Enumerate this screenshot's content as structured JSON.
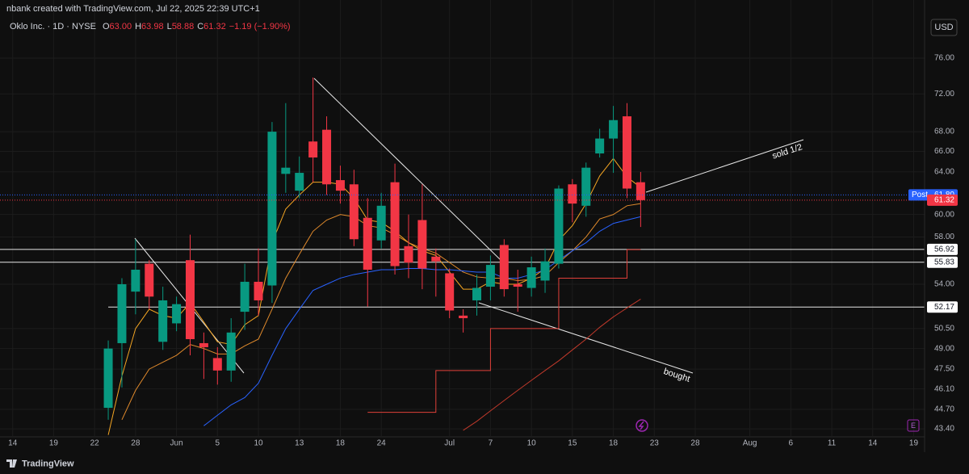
{
  "header": {
    "credit": "nbank created with TradingView.com, Jul 22, 2025 22:39 UTC+1",
    "symbol": "Oklo Inc. · 1D · NYSE",
    "ohlc": [
      {
        "key": "O",
        "value": "63.00"
      },
      {
        "key": "H",
        "value": "63.98"
      },
      {
        "key": "L",
        "value": "58.88"
      },
      {
        "key": "C",
        "value": "61.32"
      }
    ],
    "change": "−1.19 (−1.90%)",
    "currency": "USD"
  },
  "footer": {
    "brand": "TradingView"
  },
  "chart_data": {
    "type": "candlestick",
    "log_scale": true,
    "up_color": "#089981",
    "down_color": "#f23645",
    "candles": {
      "open": [
        44.8,
        49.4,
        53.4,
        55.7,
        49.5,
        50.9,
        56.0,
        49.4,
        48.3,
        47.4,
        51.8,
        54.2,
        53.9,
        63.8,
        62.2,
        67.0,
        68.2,
        63.2,
        62.8,
        59.7,
        57.7,
        63.0,
        57.2,
        59.5,
        56.3,
        54.9,
        51.5,
        52.7,
        53.8,
        57.3,
        54.0,
        53.7,
        54.3,
        55.7,
        62.8,
        60.8,
        65.8,
        67.3,
        69.6,
        63.0
      ],
      "high": [
        49.6,
        54.5,
        57.8,
        56.0,
        53.8,
        53.0,
        58.2,
        50.2,
        49.1,
        51.3,
        55.7,
        57.0,
        69.0,
        71.0,
        65.5,
        73.8,
        69.6,
        64.6,
        64.2,
        61.5,
        62.0,
        64.8,
        60.0,
        62.8,
        57.0,
        55.3,
        52.0,
        54.8,
        56.4,
        57.8,
        55.2,
        56.3,
        57.0,
        62.7,
        63.3,
        64.9,
        68.3,
        70.7,
        71.0,
        63.98
      ],
      "low": [
        44.0,
        46.2,
        51.6,
        52.0,
        48.9,
        50.3,
        48.5,
        46.8,
        46.4,
        46.6,
        50.4,
        51.5,
        52.5,
        62.0,
        61.5,
        63.0,
        61.8,
        61.0,
        57.2,
        52.2,
        57.0,
        54.8,
        54.5,
        53.6,
        53.0,
        51.3,
        50.2,
        51.5,
        52.7,
        53.0,
        51.8,
        53.0,
        53.3,
        55.3,
        59.3,
        59.8,
        65.4,
        63.9,
        61.5,
        58.88
      ],
      "close": [
        49.0,
        54.0,
        55.2,
        53.0,
        52.7,
        52.4,
        49.7,
        49.1,
        47.4,
        50.2,
        54.2,
        52.7,
        68.0,
        64.4,
        63.9,
        65.4,
        62.8,
        62.2,
        57.8,
        55.2,
        60.8,
        55.5,
        55.8,
        55.3,
        55.9,
        51.9,
        51.3,
        53.7,
        55.6,
        53.6,
        53.8,
        55.4,
        55.9,
        62.4,
        61.0,
        64.4,
        67.3,
        69.2,
        62.4,
        61.32
      ]
    },
    "series": [
      {
        "color": "#f5a623",
        "values": [
          43.0,
          47.0,
          50.5,
          52.0,
          51.5,
          51.3,
          52.5,
          51.0,
          49.5,
          49.3,
          50.8,
          51.5,
          57.5,
          60.5,
          61.8,
          63.0,
          63.0,
          62.8,
          61.5,
          59.5,
          59.3,
          58.5,
          57.5,
          56.8,
          56.4,
          55.0,
          53.6,
          53.6,
          54.2,
          54.0,
          54.0,
          54.5,
          55.3,
          57.7,
          59.0,
          61.0,
          63.6,
          65.3,
          63.5,
          62.5
        ]
      },
      {
        "color": "#e08a2c",
        "values": [
          null,
          44.0,
          46.0,
          47.5,
          48.0,
          48.5,
          49.3,
          49.0,
          48.6,
          48.6,
          49.2,
          49.7,
          52.0,
          54.5,
          56.5,
          58.5,
          59.5,
          60.0,
          59.8,
          59.0,
          58.8,
          58.2,
          57.5,
          57.0,
          56.6,
          55.8,
          55.0,
          54.6,
          54.5,
          54.5,
          54.3,
          54.4,
          54.7,
          55.8,
          56.8,
          58.0,
          59.6,
          60.0,
          60.8,
          61.0
        ]
      },
      {
        "color": "#2962ff",
        "values": [
          null,
          null,
          null,
          null,
          null,
          null,
          null,
          43.6,
          44.3,
          45.0,
          45.5,
          46.5,
          48.5,
          50.5,
          52.0,
          53.5,
          54.0,
          54.5,
          54.8,
          55.0,
          55.2,
          55.2,
          55.3,
          55.3,
          55.2,
          55.2,
          55.1,
          55.0,
          55.0,
          54.5,
          54.5,
          54.8,
          55.2,
          56.0,
          56.8,
          57.5,
          58.5,
          59.2,
          59.5,
          59.8
        ]
      },
      {
        "color": "#e0403a",
        "step": true,
        "values": [
          null,
          null,
          null,
          null,
          null,
          null,
          null,
          null,
          null,
          null,
          null,
          null,
          null,
          null,
          null,
          null,
          null,
          null,
          null,
          44.5,
          44.5,
          44.5,
          44.5,
          44.5,
          47.4,
          47.4,
          47.4,
          47.4,
          50.5,
          50.5,
          50.5,
          50.5,
          50.5,
          54.5,
          54.5,
          54.5,
          54.5,
          54.5,
          56.9,
          56.9
        ]
      },
      {
        "color": "#c0392b",
        "values": [
          null,
          null,
          null,
          null,
          null,
          null,
          null,
          null,
          null,
          null,
          null,
          null,
          null,
          null,
          null,
          null,
          null,
          null,
          null,
          null,
          null,
          null,
          null,
          null,
          null,
          null,
          43.3,
          43.9,
          44.6,
          45.3,
          46.0,
          46.7,
          47.4,
          48.1,
          48.9,
          49.7,
          50.6,
          51.4,
          52.1,
          52.8
        ]
      }
    ],
    "levels": [
      {
        "value": 56.92,
        "label": "56.92"
      },
      {
        "value": 55.83,
        "label": "55.83"
      },
      {
        "value": 52.17,
        "label": "52.17"
      }
    ],
    "post": {
      "label": "Post",
      "value": 61.8,
      "value_label": "61.80"
    },
    "last": {
      "value": 61.32,
      "label": "61.32"
    },
    "annotations": [
      "sold 1/2",
      "bought"
    ],
    "earnings_marker": "E",
    "ylim": [
      42.93,
      78.54
    ],
    "yticks": [
      {
        "value": 76,
        "label": "76.00"
      },
      {
        "value": 72,
        "label": "72.00"
      },
      {
        "value": 68,
        "label": "68.00"
      },
      {
        "value": 66,
        "label": "66.00"
      },
      {
        "value": 64,
        "label": "64.00"
      },
      {
        "value": 60,
        "label": "60.00"
      },
      {
        "value": 58,
        "label": "58.00"
      },
      {
        "value": 54,
        "label": "54.00"
      },
      {
        "value": 50.5,
        "label": "50.50"
      },
      {
        "value": 49,
        "label": "49.00"
      },
      {
        "value": 47.5,
        "label": "47.50"
      },
      {
        "value": 46.1,
        "label": "46.10"
      },
      {
        "value": 44.7,
        "label": "44.70"
      },
      {
        "value": 43.4,
        "label": "43.40"
      }
    ],
    "xlim": [
      -7.93,
      59.8
    ],
    "xticks": [
      {
        "value": -7,
        "label": "14"
      },
      {
        "value": -4,
        "label": "19"
      },
      {
        "value": -1,
        "label": "22"
      },
      {
        "value": 2,
        "label": "28"
      },
      {
        "value": 5,
        "label": "Jun"
      },
      {
        "value": 8,
        "label": "5"
      },
      {
        "value": 11,
        "label": "10"
      },
      {
        "value": 14,
        "label": "13"
      },
      {
        "value": 17,
        "label": "18"
      },
      {
        "value": 20,
        "label": "24"
      },
      {
        "value": 25,
        "label": "Jul"
      },
      {
        "value": 28,
        "label": "7"
      },
      {
        "value": 31,
        "label": "10"
      },
      {
        "value": 34,
        "label": "15"
      },
      {
        "value": 37,
        "label": "18"
      },
      {
        "value": 40,
        "label": "23"
      },
      {
        "value": 43,
        "label": "28"
      },
      {
        "value": 47,
        "label": "Aug"
      },
      {
        "value": 50,
        "label": "6"
      },
      {
        "value": 53,
        "label": "11"
      },
      {
        "value": 56,
        "label": "14"
      },
      {
        "value": 59,
        "label": "19"
      }
    ],
    "grid": true
  }
}
